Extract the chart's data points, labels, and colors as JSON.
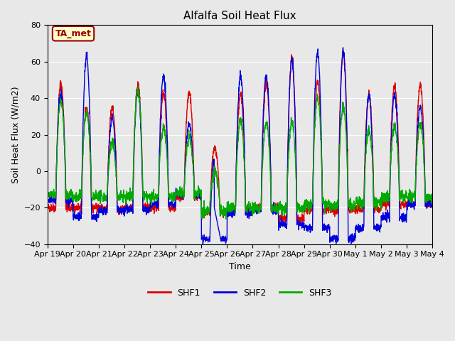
{
  "title": "Alfalfa Soil Heat Flux",
  "xlabel": "Time",
  "ylabel": "Soil Heat Flux (W/m2)",
  "ylim": [
    -40,
    80
  ],
  "yticks": [
    -40,
    -20,
    0,
    20,
    40,
    60,
    80
  ],
  "series": [
    "SHF1",
    "SHF2",
    "SHF3"
  ],
  "colors": [
    "#dd0000",
    "#0000dd",
    "#00aa00"
  ],
  "linewidth": 1.0,
  "annotation_text": "TA_met",
  "annotation_facecolor": "#ffffcc",
  "annotation_edgecolor": "#990000",
  "background_color": "#e8e8e8",
  "fig_facecolor": "#e8e8e8",
  "n_days": 15,
  "tick_labels": [
    "Apr 19",
    "Apr 20",
    "Apr 21",
    "Apr 22",
    "Apr 23",
    "Apr 24",
    "Apr 25",
    "Apr 26",
    "Apr 27",
    "Apr 28",
    "Apr 29",
    "Apr 30",
    "May 1",
    "May 2",
    "May 3",
    "May 4"
  ],
  "title_fontsize": 11,
  "label_fontsize": 9,
  "tick_fontsize": 8
}
